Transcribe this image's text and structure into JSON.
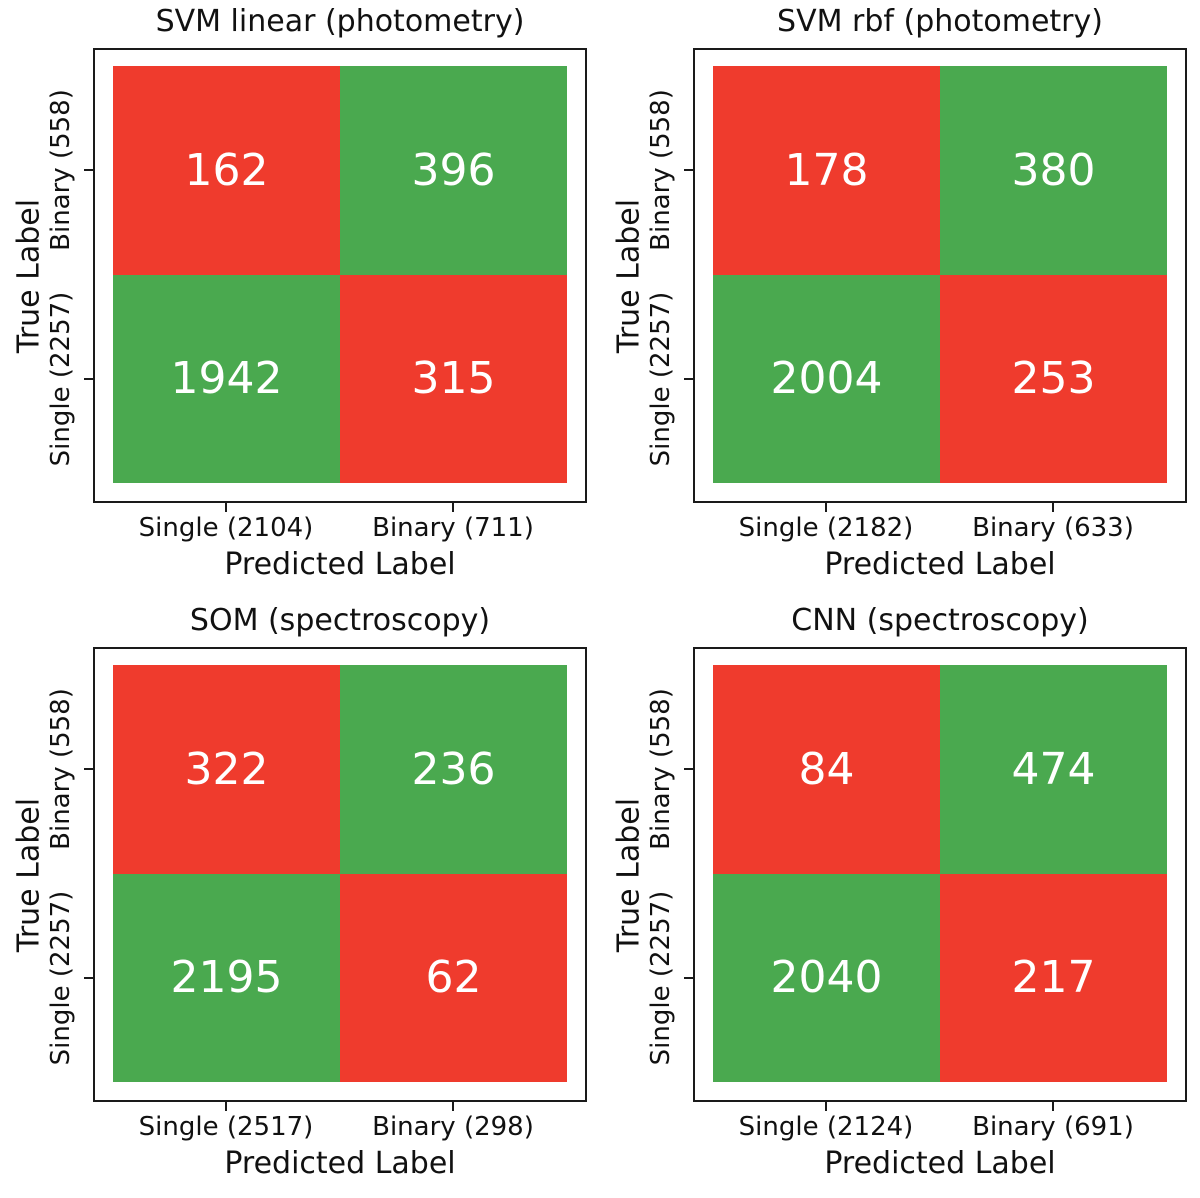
{
  "colors": {
    "correct": "#4aa94f",
    "incorrect": "#ef3b2d",
    "cell_text": "#ffffff",
    "axis_text": "#111111",
    "frame": "#1a1a1a",
    "background": "#ffffff"
  },
  "chart_data": [
    {
      "type": "heatmap",
      "title": "SVM linear (photometry)",
      "xlabel": "Predicted Label",
      "ylabel": "True Label",
      "x_ticklabels": [
        "Single (2104)",
        "Binary (711)"
      ],
      "y_ticklabels": [
        "Binary (558)",
        "Single (2257)"
      ],
      "matrix": [
        [
          162,
          396
        ],
        [
          1942,
          315
        ]
      ],
      "cells": [
        {
          "value": 162,
          "true": "Binary (558)",
          "predicted": "Single (2104)",
          "state": "incorrect"
        },
        {
          "value": 396,
          "true": "Binary (558)",
          "predicted": "Binary (711)",
          "state": "correct"
        },
        {
          "value": 1942,
          "true": "Single (2257)",
          "predicted": "Single (2104)",
          "state": "correct"
        },
        {
          "value": 315,
          "true": "Single (2257)",
          "predicted": "Binary (711)",
          "state": "incorrect"
        }
      ]
    },
    {
      "type": "heatmap",
      "title": "SVM rbf (photometry)",
      "xlabel": "Predicted Label",
      "ylabel": "True Label",
      "x_ticklabels": [
        "Single (2182)",
        "Binary (633)"
      ],
      "y_ticklabels": [
        "Binary (558)",
        "Single (2257)"
      ],
      "matrix": [
        [
          178,
          380
        ],
        [
          2004,
          253
        ]
      ],
      "cells": [
        {
          "value": 178,
          "true": "Binary (558)",
          "predicted": "Single (2182)",
          "state": "incorrect"
        },
        {
          "value": 380,
          "true": "Binary (558)",
          "predicted": "Binary (633)",
          "state": "correct"
        },
        {
          "value": 2004,
          "true": "Single (2257)",
          "predicted": "Single (2182)",
          "state": "correct"
        },
        {
          "value": 253,
          "true": "Single (2257)",
          "predicted": "Binary (633)",
          "state": "incorrect"
        }
      ]
    },
    {
      "type": "heatmap",
      "title": "SOM (spectroscopy)",
      "xlabel": "Predicted Label",
      "ylabel": "True Label",
      "x_ticklabels": [
        "Single (2517)",
        "Binary (298)"
      ],
      "y_ticklabels": [
        "Binary (558)",
        "Single (2257)"
      ],
      "matrix": [
        [
          322,
          236
        ],
        [
          2195,
          62
        ]
      ],
      "cells": [
        {
          "value": 322,
          "true": "Binary (558)",
          "predicted": "Single (2517)",
          "state": "incorrect"
        },
        {
          "value": 236,
          "true": "Binary (558)",
          "predicted": "Binary (298)",
          "state": "correct"
        },
        {
          "value": 2195,
          "true": "Single (2257)",
          "predicted": "Single (2517)",
          "state": "correct"
        },
        {
          "value": 62,
          "true": "Single (2257)",
          "predicted": "Binary (298)",
          "state": "incorrect"
        }
      ]
    },
    {
      "type": "heatmap",
      "title": "CNN (spectroscopy)",
      "xlabel": "Predicted Label",
      "ylabel": "True Label",
      "x_ticklabels": [
        "Single (2124)",
        "Binary (691)"
      ],
      "y_ticklabels": [
        "Binary (558)",
        "Single (2257)"
      ],
      "matrix": [
        [
          84,
          474
        ],
        [
          2040,
          217
        ]
      ],
      "cells": [
        {
          "value": 84,
          "true": "Binary (558)",
          "predicted": "Single (2124)",
          "state": "incorrect"
        },
        {
          "value": 474,
          "true": "Binary (558)",
          "predicted": "Binary (691)",
          "state": "correct"
        },
        {
          "value": 2040,
          "true": "Single (2257)",
          "predicted": "Single (2124)",
          "state": "correct"
        },
        {
          "value": 217,
          "true": "Single (2257)",
          "predicted": "Binary (691)",
          "state": "incorrect"
        }
      ]
    }
  ]
}
